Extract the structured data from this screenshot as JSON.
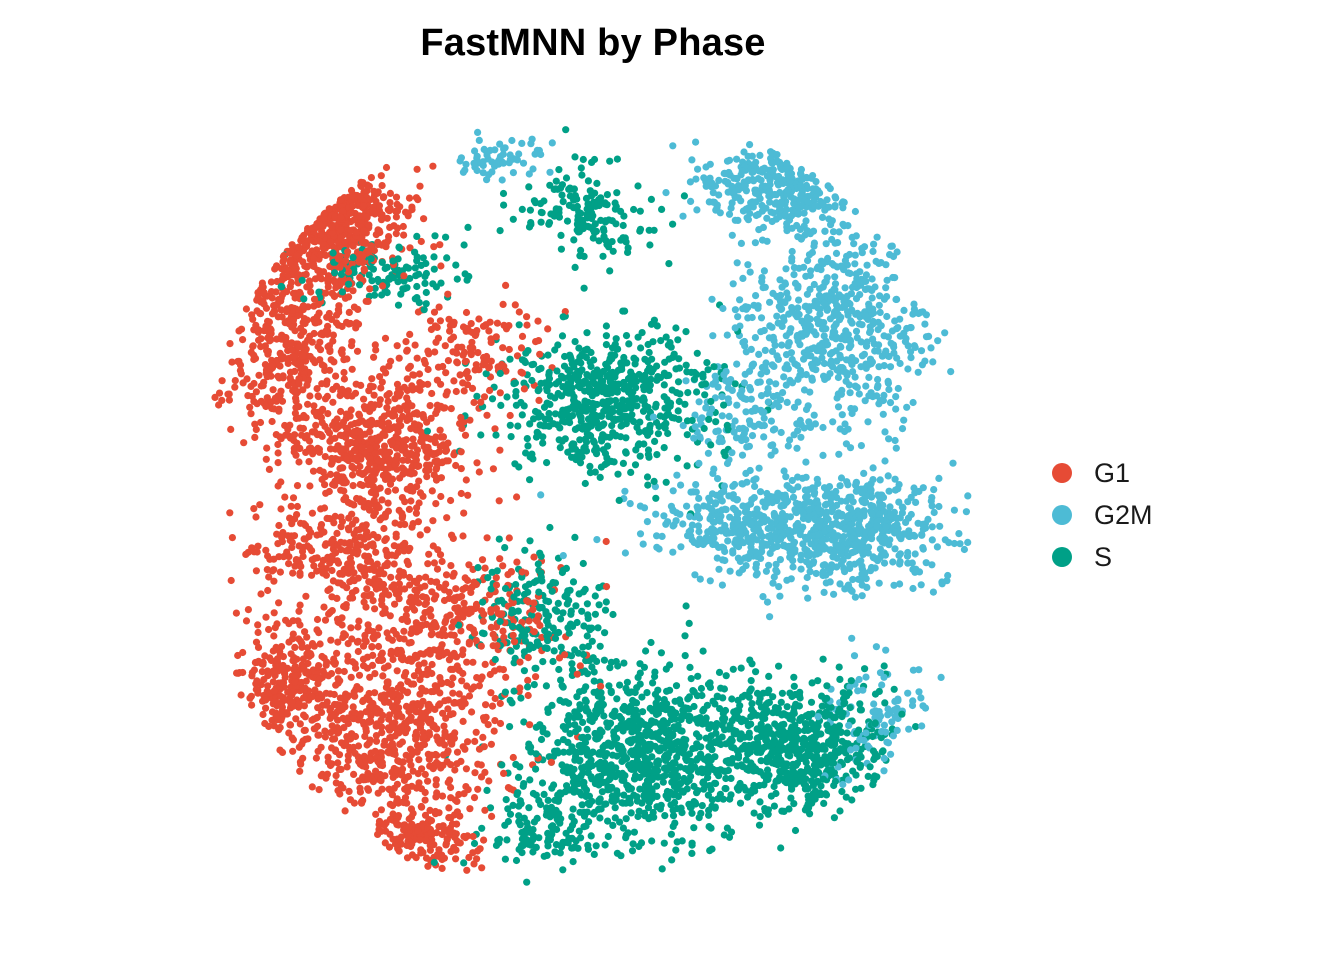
{
  "chart_data": {
    "type": "scatter",
    "title": "FastMNN by Phase",
    "xlabel": "",
    "ylabel": "",
    "axes_visible": false,
    "grid": false,
    "legend_position": "right",
    "legend": [
      {
        "name": "G1",
        "color": "#E64B35"
      },
      {
        "name": "G2M",
        "color": "#4DBBD5"
      },
      {
        "name": "S",
        "color": "#00A087"
      }
    ],
    "xlim": [
      0,
      100
    ],
    "ylim": [
      0,
      100
    ],
    "series": [
      {
        "name": "G1",
        "color": "#E64B35",
        "clusters": [
          {
            "center": [
              14,
              88
            ],
            "spread": [
              7,
              6
            ],
            "n": 520
          },
          {
            "center": [
              10,
              72
            ],
            "spread": [
              6,
              8
            ],
            "n": 380
          },
          {
            "center": [
              22,
              58
            ],
            "spread": [
              8,
              6
            ],
            "n": 560
          },
          {
            "center": [
              18,
              44
            ],
            "spread": [
              9,
              5
            ],
            "n": 300
          },
          {
            "center": [
              31,
              35
            ],
            "spread": [
              10,
              6
            ],
            "n": 340
          },
          {
            "center": [
              24,
              20
            ],
            "spread": [
              9,
              8
            ],
            "n": 620
          },
          {
            "center": [
              10,
              26
            ],
            "spread": [
              5,
              6
            ],
            "n": 260
          },
          {
            "center": [
              34,
              70
            ],
            "spread": [
              7,
              5
            ],
            "n": 150
          },
          {
            "center": [
              27,
              6
            ],
            "spread": [
              6,
              3
            ],
            "n": 150
          }
        ]
      },
      {
        "name": "G2M",
        "color": "#4DBBD5",
        "clusters": [
          {
            "center": [
              82,
              47
            ],
            "spread": [
              10,
              5
            ],
            "n": 700
          },
          {
            "center": [
              82,
              74
            ],
            "spread": [
              9,
              9
            ],
            "n": 600
          },
          {
            "center": [
              74,
              92
            ],
            "spread": [
              7,
              4
            ],
            "n": 300
          },
          {
            "center": [
              67,
              48
            ],
            "spread": [
              8,
              4
            ],
            "n": 180
          },
          {
            "center": [
              71,
              62
            ],
            "spread": [
              6,
              4
            ],
            "n": 120
          },
          {
            "center": [
              87,
              22
            ],
            "spread": [
              5,
              5
            ],
            "n": 100
          },
          {
            "center": [
              38,
              96
            ],
            "spread": [
              4,
              2
            ],
            "n": 60
          }
        ]
      },
      {
        "name": "S",
        "color": "#00A087",
        "clusters": [
          {
            "center": [
              52,
              64
            ],
            "spread": [
              9,
              6
            ],
            "n": 620
          },
          {
            "center": [
              56,
              17
            ],
            "spread": [
              10,
              8
            ],
            "n": 900
          },
          {
            "center": [
              77,
              18
            ],
            "spread": [
              8,
              6
            ],
            "n": 600
          },
          {
            "center": [
              50,
              89
            ],
            "spread": [
              6,
              4
            ],
            "n": 160
          },
          {
            "center": [
              44,
              35
            ],
            "spread": [
              6,
              6
            ],
            "n": 200
          },
          {
            "center": [
              22,
              81
            ],
            "spread": [
              8,
              3
            ],
            "n": 120
          },
          {
            "center": [
              43,
              7
            ],
            "spread": [
              5,
              3
            ],
            "n": 100
          }
        ]
      }
    ]
  }
}
